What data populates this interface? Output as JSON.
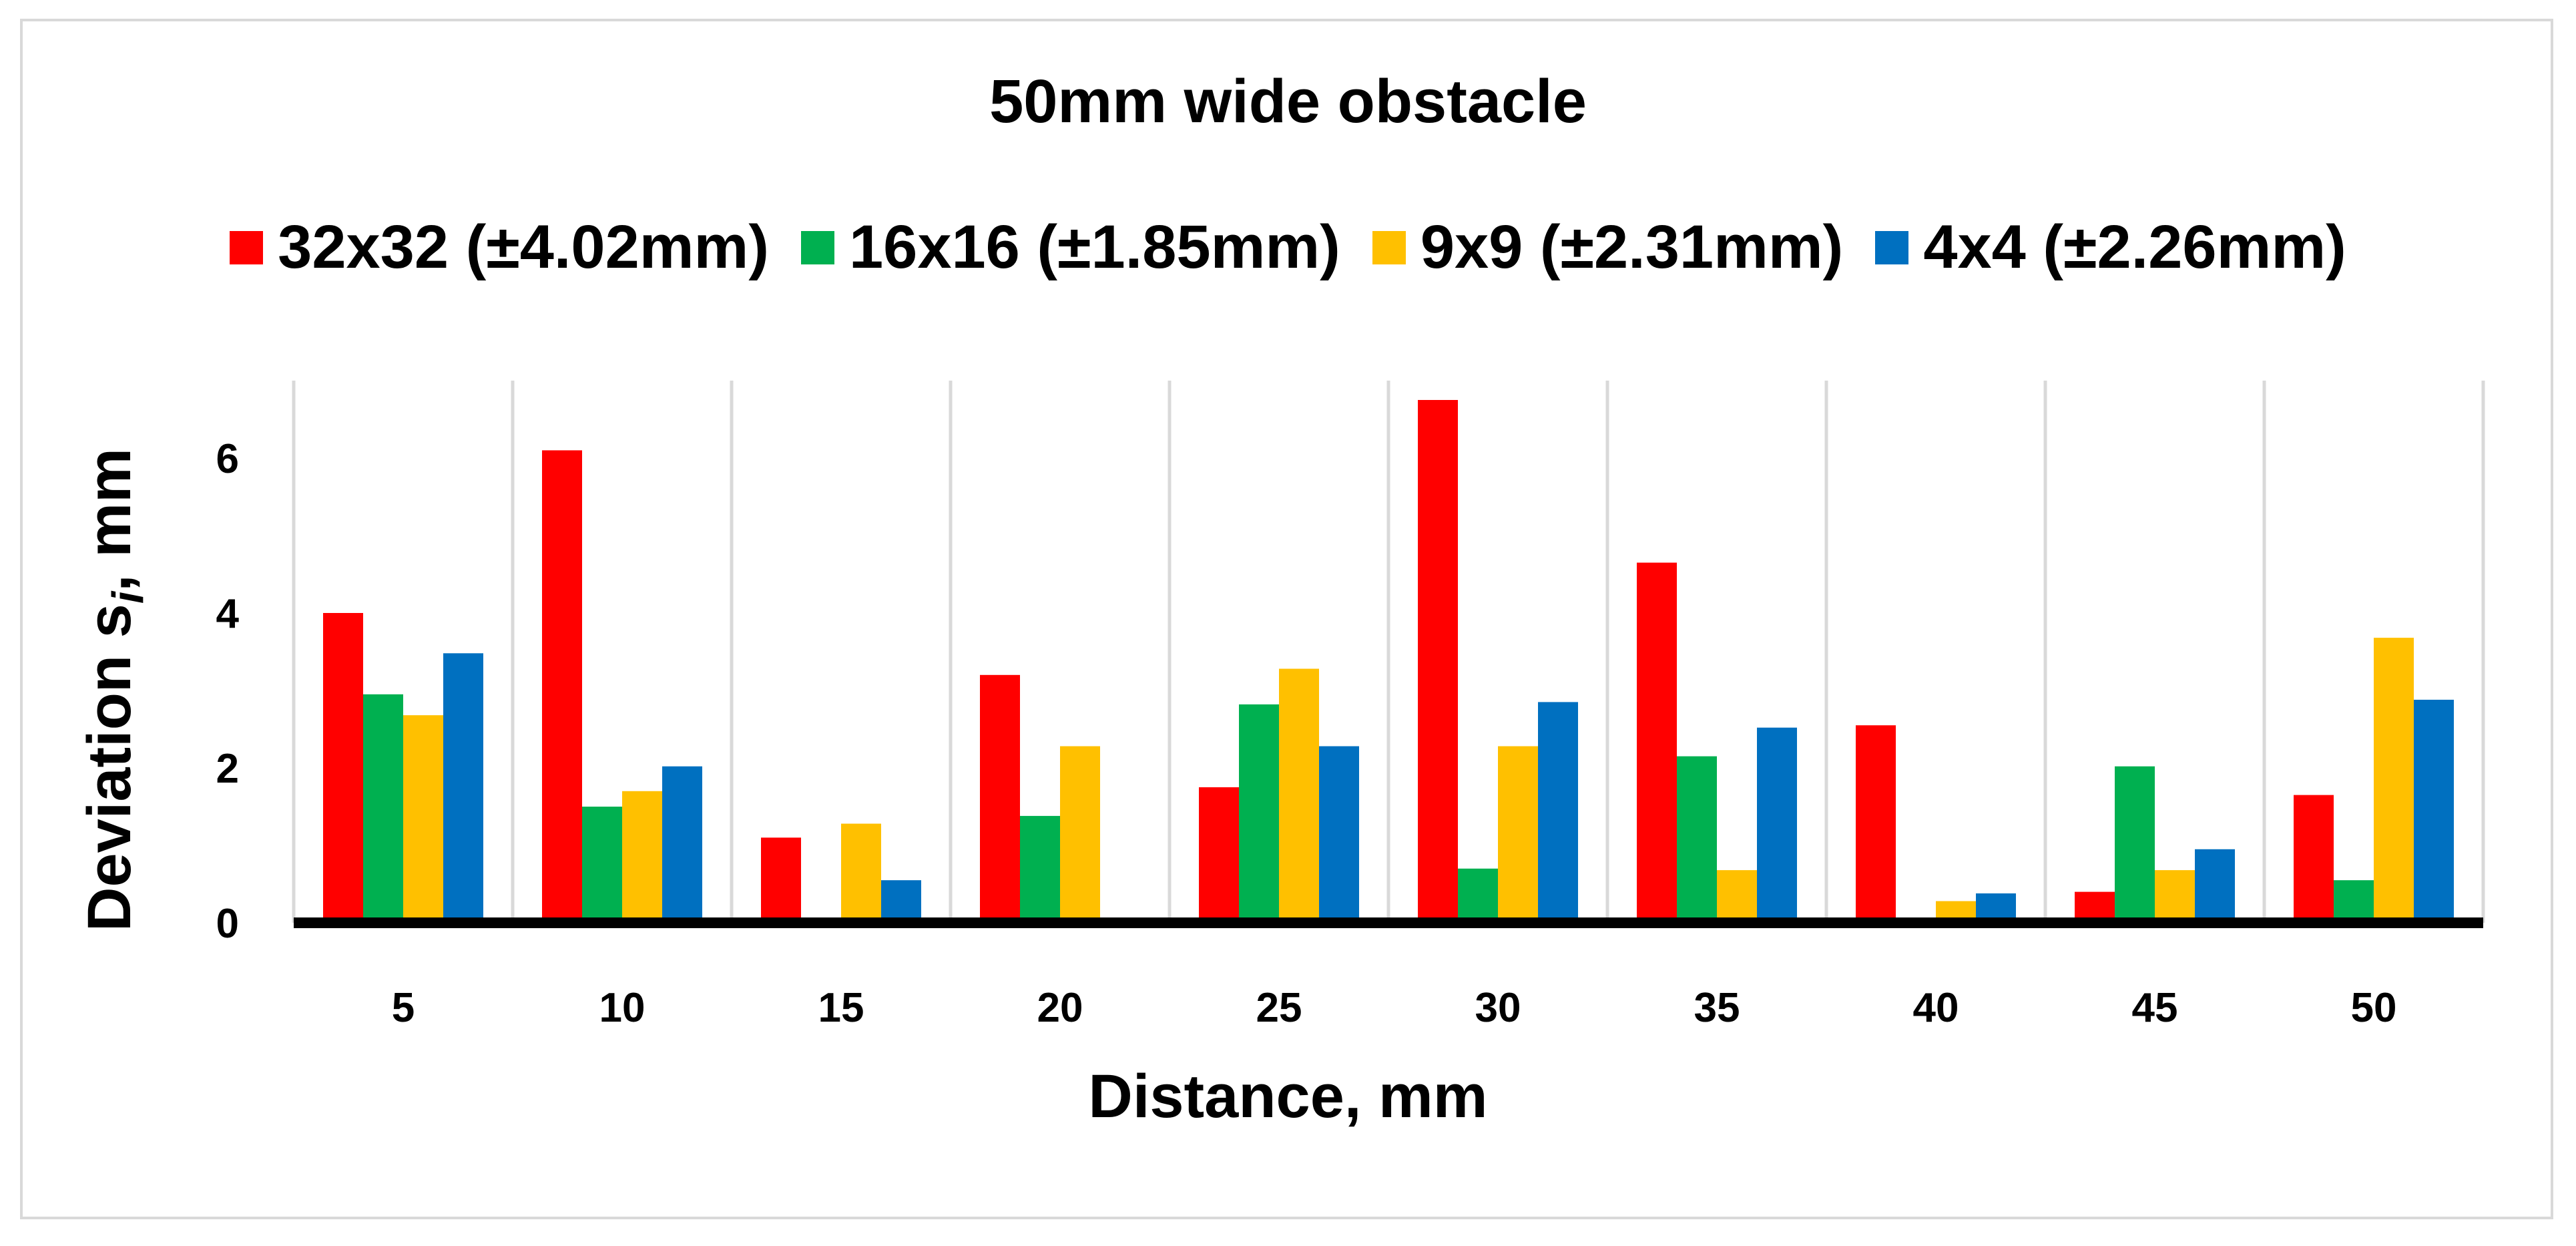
{
  "chart_data": {
    "type": "bar",
    "title": "50mm wide obstacle",
    "xlabel": "Distance, mm",
    "ylabel": "Deviation s",
    "ylabel_subscript": "i",
    "ylabel_suffix": ", mm",
    "categories": [
      "5",
      "10",
      "15",
      "20",
      "25",
      "30",
      "35",
      "40",
      "45",
      "50"
    ],
    "ylim": [
      0,
      7
    ],
    "yticks": [
      0,
      2,
      4,
      6
    ],
    "grid": "vertical",
    "legend_position": "top",
    "series": [
      {
        "name": "32x32 (±4.02mm)",
        "color": "#ff0000",
        "values": [
          4.0,
          6.1,
          1.1,
          3.2,
          1.75,
          6.75,
          4.65,
          2.55,
          0.4,
          1.65
        ]
      },
      {
        "name": "16x16 (±1.85mm)",
        "color": "#00b050",
        "values": [
          2.95,
          1.5,
          0,
          1.38,
          2.82,
          0.7,
          2.15,
          0,
          2.02,
          0.55
        ]
      },
      {
        "name": "9x9 (±2.31mm)",
        "color": "#ffc000",
        "values": [
          2.68,
          1.7,
          1.28,
          2.28,
          3.28,
          2.28,
          0.68,
          0.28,
          0.68,
          3.68
        ]
      },
      {
        "name": "4x4 (±2.26mm)",
        "color": "#0070c0",
        "values": [
          3.48,
          2.02,
          0.55,
          0,
          2.28,
          2.85,
          2.52,
          0.38,
          0.95,
          2.88
        ]
      }
    ]
  }
}
